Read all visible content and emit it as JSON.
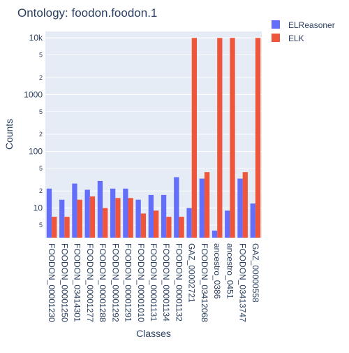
{
  "chart_data": {
    "type": "bar",
    "title": "Ontology: foodon.foodon.1",
    "xlabel": "Classes",
    "ylabel": "Counts",
    "yscale": "log",
    "ylim": [
      3,
      13000
    ],
    "grid": true,
    "legend_position": "top-right",
    "categories": [
      "FOODON_00001230",
      "FOODON_00001250",
      "FOODON_03414301",
      "FOODON_00001277",
      "FOODON_00001288",
      "FOODON_00001292",
      "FOODON_00001291",
      "FOODON_00001010",
      "FOODON_00001131",
      "FOODON_00001134",
      "FOODON_00001132",
      "GAZ_00002721",
      "FOODON_03412068",
      "ancestro_0386",
      "ancestro_0451",
      "FOODON_03413747",
      "GAZ_00000558"
    ],
    "series": [
      {
        "name": "ELReasoner",
        "color": "#636efa",
        "values": [
          22,
          14,
          27,
          21,
          30,
          22,
          22,
          14,
          17,
          17,
          35,
          10,
          33,
          4,
          9,
          33,
          12
        ]
      },
      {
        "name": "ELK",
        "color": "#ef553b",
        "values": [
          7,
          7,
          14,
          16,
          10,
          15,
          15,
          8,
          9,
          7,
          7,
          10000,
          43,
          10000,
          10000,
          43,
          10000
        ]
      }
    ],
    "ytick_labels": [
      "5",
      "10",
      "2",
      "5",
      "100",
      "2",
      "5",
      "1000",
      "2",
      "5",
      "10k"
    ]
  }
}
